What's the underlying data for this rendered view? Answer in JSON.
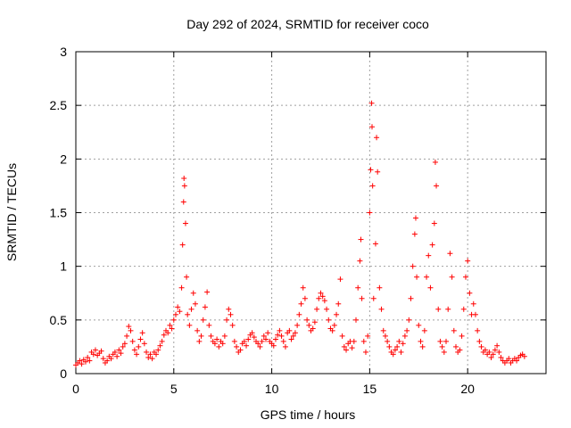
{
  "chart_data": {
    "type": "scatter",
    "title": "Day 292 of 2024, SRMTID for receiver coco",
    "xlabel": "GPS time / hours",
    "ylabel": "SRMTID / TECUs",
    "xlim": [
      0,
      24
    ],
    "ylim": [
      0,
      3
    ],
    "x_ticks": [
      0,
      5,
      10,
      15,
      20
    ],
    "x_tick_labels": [
      "0",
      "5",
      "10",
      "15",
      "20"
    ],
    "y_ticks": [
      0,
      0.5,
      1,
      1.5,
      2,
      2.5,
      3
    ],
    "y_tick_labels": [
      "0",
      "0.5",
      "1",
      "1.5",
      "2",
      "2.5",
      "3"
    ],
    "grid": true,
    "marker": "+",
    "marker_color": "#ff0000",
    "series": [
      {
        "name": "SRMTID",
        "points": [
          [
            0.0,
            0.08
          ],
          [
            0.1,
            0.1
          ],
          [
            0.2,
            0.12
          ],
          [
            0.3,
            0.09
          ],
          [
            0.4,
            0.13
          ],
          [
            0.5,
            0.11
          ],
          [
            0.6,
            0.15
          ],
          [
            0.7,
            0.12
          ],
          [
            0.8,
            0.2
          ],
          [
            0.9,
            0.18
          ],
          [
            1.0,
            0.22
          ],
          [
            1.1,
            0.17
          ],
          [
            1.2,
            0.19
          ],
          [
            1.3,
            0.21
          ],
          [
            1.4,
            0.14
          ],
          [
            1.5,
            0.1
          ],
          [
            1.6,
            0.12
          ],
          [
            1.7,
            0.16
          ],
          [
            1.8,
            0.14
          ],
          [
            1.9,
            0.18
          ],
          [
            2.0,
            0.2
          ],
          [
            2.1,
            0.16
          ],
          [
            2.2,
            0.22
          ],
          [
            2.3,
            0.19
          ],
          [
            2.4,
            0.25
          ],
          [
            2.5,
            0.28
          ],
          [
            2.6,
            0.35
          ],
          [
            2.7,
            0.44
          ],
          [
            2.8,
            0.4
          ],
          [
            2.9,
            0.3
          ],
          [
            3.0,
            0.22
          ],
          [
            3.1,
            0.18
          ],
          [
            3.2,
            0.25
          ],
          [
            3.3,
            0.32
          ],
          [
            3.4,
            0.38
          ],
          [
            3.5,
            0.28
          ],
          [
            3.6,
            0.2
          ],
          [
            3.7,
            0.15
          ],
          [
            3.8,
            0.18
          ],
          [
            3.9,
            0.14
          ],
          [
            4.0,
            0.2
          ],
          [
            4.1,
            0.18
          ],
          [
            4.2,
            0.22
          ],
          [
            4.3,
            0.26
          ],
          [
            4.4,
            0.3
          ],
          [
            4.5,
            0.36
          ],
          [
            4.6,
            0.4
          ],
          [
            4.7,
            0.38
          ],
          [
            4.8,
            0.45
          ],
          [
            4.9,
            0.42
          ],
          [
            5.0,
            0.5
          ],
          [
            5.1,
            0.55
          ],
          [
            5.2,
            0.62
          ],
          [
            5.3,
            0.58
          ],
          [
            5.4,
            0.8
          ],
          [
            5.45,
            1.2
          ],
          [
            5.5,
            1.6
          ],
          [
            5.52,
            1.82
          ],
          [
            5.55,
            1.75
          ],
          [
            5.6,
            1.4
          ],
          [
            5.65,
            0.9
          ],
          [
            5.7,
            0.55
          ],
          [
            5.8,
            0.45
          ],
          [
            5.9,
            0.6
          ],
          [
            6.0,
            0.75
          ],
          [
            6.1,
            0.65
          ],
          [
            6.2,
            0.4
          ],
          [
            6.3,
            0.3
          ],
          [
            6.4,
            0.35
          ],
          [
            6.5,
            0.5
          ],
          [
            6.6,
            0.62
          ],
          [
            6.7,
            0.76
          ],
          [
            6.8,
            0.45
          ],
          [
            6.9,
            0.35
          ],
          [
            7.0,
            0.3
          ],
          [
            7.1,
            0.28
          ],
          [
            7.2,
            0.32
          ],
          [
            7.3,
            0.25
          ],
          [
            7.4,
            0.3
          ],
          [
            7.5,
            0.28
          ],
          [
            7.6,
            0.35
          ],
          [
            7.7,
            0.5
          ],
          [
            7.8,
            0.6
          ],
          [
            7.9,
            0.55
          ],
          [
            8.0,
            0.45
          ],
          [
            8.1,
            0.3
          ],
          [
            8.2,
            0.25
          ],
          [
            8.3,
            0.2
          ],
          [
            8.4,
            0.22
          ],
          [
            8.5,
            0.28
          ],
          [
            8.6,
            0.3
          ],
          [
            8.7,
            0.26
          ],
          [
            8.8,
            0.32
          ],
          [
            8.9,
            0.36
          ],
          [
            9.0,
            0.38
          ],
          [
            9.1,
            0.34
          ],
          [
            9.2,
            0.3
          ],
          [
            9.3,
            0.28
          ],
          [
            9.4,
            0.25
          ],
          [
            9.5,
            0.3
          ],
          [
            9.6,
            0.35
          ],
          [
            9.7,
            0.32
          ],
          [
            9.8,
            0.38
          ],
          [
            9.9,
            0.3
          ],
          [
            10.0,
            0.28
          ],
          [
            10.1,
            0.26
          ],
          [
            10.2,
            0.32
          ],
          [
            10.3,
            0.36
          ],
          [
            10.4,
            0.4
          ],
          [
            10.5,
            0.35
          ],
          [
            10.6,
            0.3
          ],
          [
            10.7,
            0.25
          ],
          [
            10.8,
            0.38
          ],
          [
            10.9,
            0.4
          ],
          [
            11.0,
            0.32
          ],
          [
            11.1,
            0.35
          ],
          [
            11.2,
            0.38
          ],
          [
            11.3,
            0.45
          ],
          [
            11.4,
            0.55
          ],
          [
            11.5,
            0.65
          ],
          [
            11.6,
            0.8
          ],
          [
            11.7,
            0.7
          ],
          [
            11.8,
            0.5
          ],
          [
            11.9,
            0.45
          ],
          [
            12.0,
            0.4
          ],
          [
            12.1,
            0.42
          ],
          [
            12.2,
            0.48
          ],
          [
            12.3,
            0.6
          ],
          [
            12.4,
            0.7
          ],
          [
            12.5,
            0.75
          ],
          [
            12.6,
            0.72
          ],
          [
            12.7,
            0.68
          ],
          [
            12.8,
            0.6
          ],
          [
            12.9,
            0.5
          ],
          [
            13.0,
            0.42
          ],
          [
            13.1,
            0.4
          ],
          [
            13.2,
            0.45
          ],
          [
            13.3,
            0.55
          ],
          [
            13.4,
            0.65
          ],
          [
            13.5,
            0.88
          ],
          [
            13.6,
            0.35
          ],
          [
            13.7,
            0.25
          ],
          [
            13.8,
            0.22
          ],
          [
            13.9,
            0.28
          ],
          [
            14.0,
            0.3
          ],
          [
            14.1,
            0.24
          ],
          [
            14.2,
            0.3
          ],
          [
            14.3,
            0.5
          ],
          [
            14.4,
            0.8
          ],
          [
            14.5,
            1.05
          ],
          [
            14.55,
            1.25
          ],
          [
            14.6,
            0.7
          ],
          [
            14.7,
            0.3
          ],
          [
            14.8,
            0.2
          ],
          [
            14.9,
            0.35
          ],
          [
            15.0,
            1.5
          ],
          [
            15.05,
            1.9
          ],
          [
            15.1,
            2.52
          ],
          [
            15.12,
            2.3
          ],
          [
            15.15,
            1.75
          ],
          [
            15.2,
            0.7
          ],
          [
            15.3,
            1.21
          ],
          [
            15.35,
            2.2
          ],
          [
            15.4,
            1.88
          ],
          [
            15.5,
            0.8
          ],
          [
            15.6,
            0.6
          ],
          [
            15.7,
            0.4
          ],
          [
            15.8,
            0.35
          ],
          [
            15.9,
            0.3
          ],
          [
            16.0,
            0.25
          ],
          [
            16.1,
            0.2
          ],
          [
            16.2,
            0.18
          ],
          [
            16.3,
            0.22
          ],
          [
            16.4,
            0.25
          ],
          [
            16.5,
            0.3
          ],
          [
            16.6,
            0.2
          ],
          [
            16.7,
            0.28
          ],
          [
            16.8,
            0.35
          ],
          [
            16.9,
            0.4
          ],
          [
            17.0,
            0.5
          ],
          [
            17.1,
            0.7
          ],
          [
            17.2,
            1.0
          ],
          [
            17.3,
            1.3
          ],
          [
            17.35,
            1.45
          ],
          [
            17.4,
            0.9
          ],
          [
            17.5,
            0.45
          ],
          [
            17.6,
            0.3
          ],
          [
            17.7,
            0.25
          ],
          [
            17.8,
            0.4
          ],
          [
            17.9,
            0.9
          ],
          [
            18.0,
            1.1
          ],
          [
            18.1,
            0.8
          ],
          [
            18.2,
            1.2
          ],
          [
            18.3,
            1.4
          ],
          [
            18.35,
            1.97
          ],
          [
            18.4,
            1.75
          ],
          [
            18.5,
            0.6
          ],
          [
            18.6,
            0.3
          ],
          [
            18.7,
            0.25
          ],
          [
            18.8,
            0.2
          ],
          [
            18.9,
            0.3
          ],
          [
            19.0,
            0.6
          ],
          [
            19.1,
            1.12
          ],
          [
            19.2,
            0.9
          ],
          [
            19.3,
            0.4
          ],
          [
            19.4,
            0.25
          ],
          [
            19.5,
            0.2
          ],
          [
            19.6,
            0.22
          ],
          [
            19.7,
            0.35
          ],
          [
            19.8,
            0.6
          ],
          [
            19.9,
            0.9
          ],
          [
            20.0,
            1.05
          ],
          [
            20.1,
            0.75
          ],
          [
            20.2,
            0.55
          ],
          [
            20.3,
            0.65
          ],
          [
            20.4,
            0.55
          ],
          [
            20.5,
            0.4
          ],
          [
            20.6,
            0.3
          ],
          [
            20.7,
            0.25
          ],
          [
            20.8,
            0.2
          ],
          [
            20.9,
            0.22
          ],
          [
            21.0,
            0.18
          ],
          [
            21.1,
            0.2
          ],
          [
            21.2,
            0.15
          ],
          [
            21.3,
            0.18
          ],
          [
            21.4,
            0.22
          ],
          [
            21.5,
            0.26
          ],
          [
            21.6,
            0.2
          ],
          [
            21.7,
            0.15
          ],
          [
            21.8,
            0.12
          ],
          [
            21.9,
            0.1
          ],
          [
            22.0,
            0.12
          ],
          [
            22.1,
            0.14
          ],
          [
            22.2,
            0.1
          ],
          [
            22.3,
            0.12
          ],
          [
            22.4,
            0.14
          ],
          [
            22.5,
            0.12
          ],
          [
            22.6,
            0.15
          ],
          [
            22.7,
            0.17
          ],
          [
            22.8,
            0.18
          ],
          [
            22.9,
            0.16
          ]
        ]
      }
    ]
  }
}
